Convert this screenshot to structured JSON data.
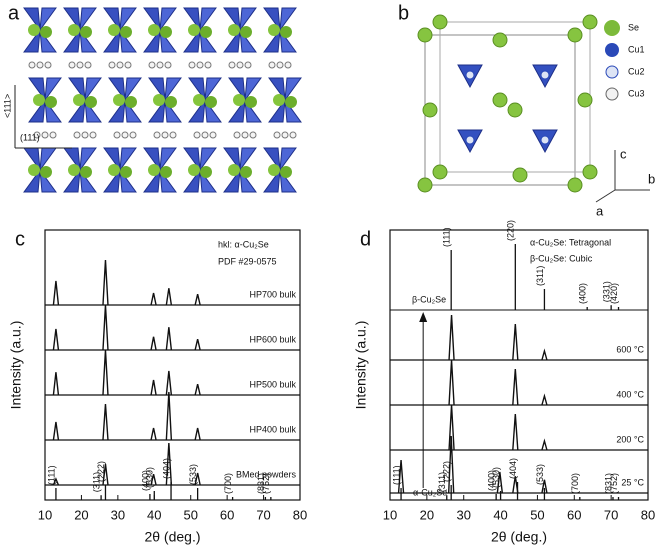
{
  "panels": {
    "a": {
      "label": "a",
      "direction": "<111>",
      "plane": "(111)"
    },
    "b": {
      "label": "b",
      "legend": [
        "Se",
        "Cu1",
        "Cu2",
        "Cu3"
      ],
      "axes": [
        "c",
        "b",
        "a"
      ]
    }
  },
  "chart_data": [
    {
      "type": "line",
      "label": "c",
      "xlabel": "2θ (deg.)",
      "ylabel": "Intensity (a.u.)",
      "annotations": [
        "hkl: α-Cu₂Se",
        "PDF #29-0575"
      ],
      "xlim": [
        10,
        80
      ],
      "xticks": [
        10,
        20,
        30,
        40,
        50,
        60,
        70,
        80
      ],
      "series": [
        {
          "name": "HP700 bulk",
          "color": "#111111",
          "x": [
            13,
            26.6,
            39.8,
            44,
            51.9
          ],
          "values": [
            40,
            75,
            20,
            28,
            18
          ]
        },
        {
          "name": "HP600 bulk",
          "color": "#111111",
          "x": [
            13,
            26.6,
            39.8,
            44,
            51.9
          ],
          "values": [
            35,
            75,
            22,
            38,
            18
          ]
        },
        {
          "name": "HP500 bulk",
          "color": "#111111",
          "x": [
            13,
            26.6,
            39.8,
            44,
            51.9
          ],
          "values": [
            38,
            75,
            25,
            40,
            18
          ]
        },
        {
          "name": "HP400 bulk",
          "color": "#111111",
          "x": [
            13,
            26.6,
            39.8,
            44,
            51.9
          ],
          "values": [
            30,
            60,
            20,
            80,
            20
          ]
        },
        {
          "name": "BMed powders",
          "color": "#111111",
          "x": [
            13,
            26.6,
            39.8,
            44,
            51.9
          ],
          "values": [
            10,
            35,
            18,
            70,
            20
          ]
        }
      ],
      "reference": {
        "x": [
          13,
          25.4,
          26.6,
          38.8,
          40,
          44.6,
          51.9,
          61.5,
          70.5,
          72
        ],
        "values": [
          20,
          8,
          25,
          10,
          15,
          30,
          20,
          5,
          5,
          5
        ],
        "labels": [
          "(111)",
          "(311)",
          "(222)",
          "(400)",
          "(530)",
          "(404)",
          "(533)",
          "(700)",
          "(831)",
          "(752)"
        ]
      }
    },
    {
      "type": "line",
      "label": "d",
      "xlabel": "2θ (deg.)",
      "ylabel": "Intensity (a.u.)",
      "annotations": [
        "α-Cu₂Se: Tetragonal",
        "β-Cu₂Se: Cubic",
        "β-Cu₂Se",
        "α-Cu₂Se"
      ],
      "xlim": [
        10,
        80
      ],
      "xticks": [
        10,
        20,
        30,
        40,
        50,
        60,
        70,
        80
      ],
      "top_reference": {
        "x": [
          26.6,
          44,
          51.9,
          63.5,
          70,
          72
        ],
        "values": [
          100,
          110,
          35,
          5,
          8,
          5
        ],
        "labels": [
          "(111)",
          "(220)",
          "(311)",
          "(400)",
          "(331)",
          "(420)"
        ]
      },
      "series": [
        {
          "name": "600 °C",
          "color": "#111111",
          "x": [
            26.7,
            44,
            51.9
          ],
          "values": [
            75,
            60,
            15
          ]
        },
        {
          "name": "400 °C",
          "color": "#111111",
          "x": [
            26.7,
            44,
            51.9
          ],
          "values": [
            75,
            60,
            15
          ]
        },
        {
          "name": "200 °C",
          "color": "#111111",
          "x": [
            26.7,
            44,
            51.9
          ],
          "values": [
            75,
            60,
            15
          ]
        },
        {
          "name": "25 °C",
          "color": "#111111",
          "x": [
            13,
            26.6,
            39.8,
            44,
            51.9
          ],
          "values": [
            55,
            95,
            35,
            28,
            22
          ]
        }
      ],
      "reference": {
        "x": [
          13,
          25.4,
          26.6,
          38.8,
          40,
          44.6,
          51.9,
          61.5,
          70.5,
          72
        ],
        "values": [
          20,
          8,
          25,
          10,
          15,
          30,
          20,
          5,
          5,
          5
        ],
        "labels": [
          "(111)",
          "(311)",
          "(222)",
          "(400)",
          "(530)",
          "(404)",
          "(533)",
          "(700)",
          "(831)",
          "(752)"
        ]
      }
    }
  ]
}
